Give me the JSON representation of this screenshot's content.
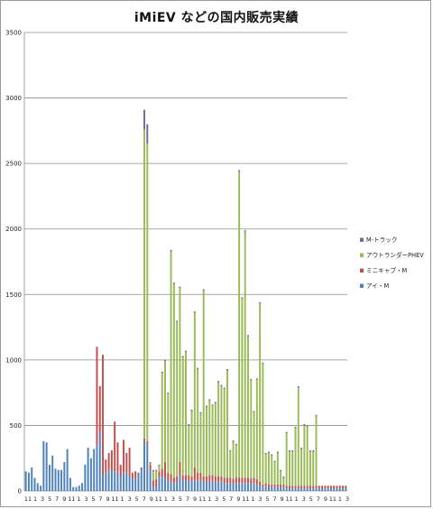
{
  "chart_data": {
    "type": "bar",
    "stacked": true,
    "title": "iMiEV などの国内販売実績",
    "xlabel": "",
    "ylabel": "",
    "ylim": [
      0,
      3500
    ],
    "y_ticks": [
      0,
      500,
      1000,
      1500,
      2000,
      2500,
      3000,
      3500
    ],
    "grid": true,
    "legend_position": "right",
    "x_tick_labels": [
      "11",
      "1",
      "3",
      "5",
      "7",
      "9",
      "11",
      "1",
      "3",
      "5",
      "7",
      "9",
      "11",
      "1",
      "3",
      "5",
      "7",
      "9",
      "11",
      "1",
      "3",
      "5",
      "7",
      "9",
      "11",
      "1",
      "3",
      "5",
      "7",
      "9",
      "11",
      "1",
      "3",
      "5",
      "7",
      "9",
      "11",
      "1",
      "3",
      "5",
      "7",
      "9",
      "11",
      "1",
      "3"
    ],
    "colors": {
      "アイ・M": "#4f81bd",
      "ミニキャブ・M": "#c0504d",
      "アウトランダーPHEV": "#9bbb59",
      "M-トラック": "#8064a2"
    },
    "series": [
      {
        "name": "アイ・M",
        "values": [
          150,
          140,
          180,
          100,
          60,
          40,
          380,
          370,
          200,
          270,
          170,
          160,
          160,
          220,
          320,
          100,
          30,
          30,
          40,
          60,
          200,
          330,
          250,
          320,
          350,
          450,
          120,
          140,
          160,
          150,
          150,
          150,
          110,
          140,
          140,
          110,
          100,
          90,
          140,
          150,
          380,
          360,
          160,
          30,
          30,
          110,
          110,
          100,
          80,
          70,
          60,
          70,
          120,
          80,
          80,
          80,
          70,
          80,
          80,
          80,
          70,
          70,
          80,
          70,
          70,
          70,
          70,
          60,
          60,
          60,
          55,
          60,
          60,
          60,
          60,
          60,
          55,
          60,
          50,
          40,
          30,
          40,
          30,
          30,
          30,
          30,
          30,
          30,
          20,
          20,
          20,
          20,
          20,
          20,
          20,
          20,
          20,
          20,
          20,
          20,
          20,
          20,
          20,
          20,
          20,
          20,
          20,
          20,
          20
        ]
      },
      {
        "name": "ミニキャブ・M",
        "values": [
          0,
          0,
          0,
          0,
          0,
          0,
          0,
          0,
          0,
          0,
          0,
          0,
          0,
          0,
          0,
          0,
          0,
          0,
          0,
          0,
          0,
          0,
          0,
          0,
          750,
          350,
          920,
          100,
          130,
          160,
          380,
          220,
          90,
          250,
          150,
          220,
          40,
          60,
          0,
          0,
          20,
          20,
          40,
          50,
          60,
          40,
          60,
          120,
          60,
          60,
          40,
          40,
          100,
          40,
          40,
          40,
          40,
          100,
          60,
          60,
          40,
          40,
          40,
          50,
          40,
          40,
          40,
          40,
          40,
          40,
          40,
          40,
          40,
          40,
          40,
          40,
          40,
          40,
          40,
          30,
          20,
          20,
          20,
          20,
          20,
          20,
          20,
          20,
          20,
          20,
          20,
          20,
          20,
          20,
          20,
          20,
          20,
          20,
          20,
          20,
          20,
          20,
          20,
          20,
          20,
          20,
          20,
          20,
          20
        ]
      },
      {
        "name": "アウトランダーPHEV",
        "values": [
          0,
          0,
          0,
          0,
          0,
          0,
          0,
          0,
          0,
          0,
          0,
          0,
          0,
          0,
          0,
          0,
          0,
          0,
          0,
          0,
          0,
          0,
          0,
          0,
          0,
          0,
          0,
          0,
          0,
          0,
          0,
          0,
          0,
          0,
          0,
          0,
          0,
          0,
          0,
          0,
          2360,
          2270,
          10,
          70,
          60,
          40,
          730,
          770,
          600,
          1700,
          1480,
          1180,
          1330,
          900,
          940,
          380,
          500,
          1180,
          790,
          450,
          1420,
          530,
          570,
          530,
          560,
          720,
          690,
          680,
          820,
          200,
          280,
          250,
          2340,
          1370,
          1880,
          1080,
          750,
          500,
          760,
          1360,
          920,
          220,
          240,
          220,
          170,
          240,
          100,
          50,
          400,
          260,
          260,
          440,
          750,
          280,
          460,
          450,
          260,
          260,
          530,
          0,
          0,
          0,
          0,
          0,
          0,
          0,
          0,
          0,
          0
        ]
      },
      {
        "name": "M-トラック",
        "values": [
          0,
          0,
          0,
          0,
          0,
          0,
          0,
          0,
          0,
          0,
          0,
          0,
          0,
          0,
          0,
          0,
          0,
          0,
          0,
          0,
          0,
          0,
          0,
          0,
          0,
          0,
          0,
          0,
          0,
          0,
          0,
          0,
          0,
          0,
          0,
          0,
          0,
          0,
          0,
          30,
          150,
          150,
          10,
          10,
          10,
          10,
          10,
          10,
          10,
          10,
          10,
          10,
          10,
          10,
          10,
          10,
          10,
          10,
          10,
          10,
          10,
          10,
          10,
          10,
          10,
          10,
          10,
          10,
          10,
          10,
          10,
          10,
          10,
          10,
          10,
          10,
          10,
          10,
          10,
          10,
          10,
          10,
          10,
          10,
          10,
          10,
          10,
          10,
          10,
          10,
          10,
          10,
          10,
          10,
          10,
          10,
          10,
          10,
          10,
          0,
          0,
          0,
          0,
          0,
          0,
          0,
          0,
          0,
          0
        ]
      }
    ]
  },
  "legend": [
    {
      "label": "M-トラック",
      "color": "#8064a2"
    },
    {
      "label": "アウトランダーPHEV",
      "color": "#9bbb59"
    },
    {
      "label": "ミニキャブ・M",
      "color": "#c0504d"
    },
    {
      "label": "アイ・M",
      "color": "#4f81bd"
    }
  ]
}
